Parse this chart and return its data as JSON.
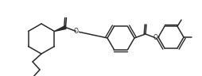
{
  "bg_color": "#ffffff",
  "line_color": "#2a2a2a",
  "lw": 1.1,
  "figsize": [
    2.55,
    0.96
  ],
  "dpi": 100,
  "bond_color": "#2a2a2a"
}
